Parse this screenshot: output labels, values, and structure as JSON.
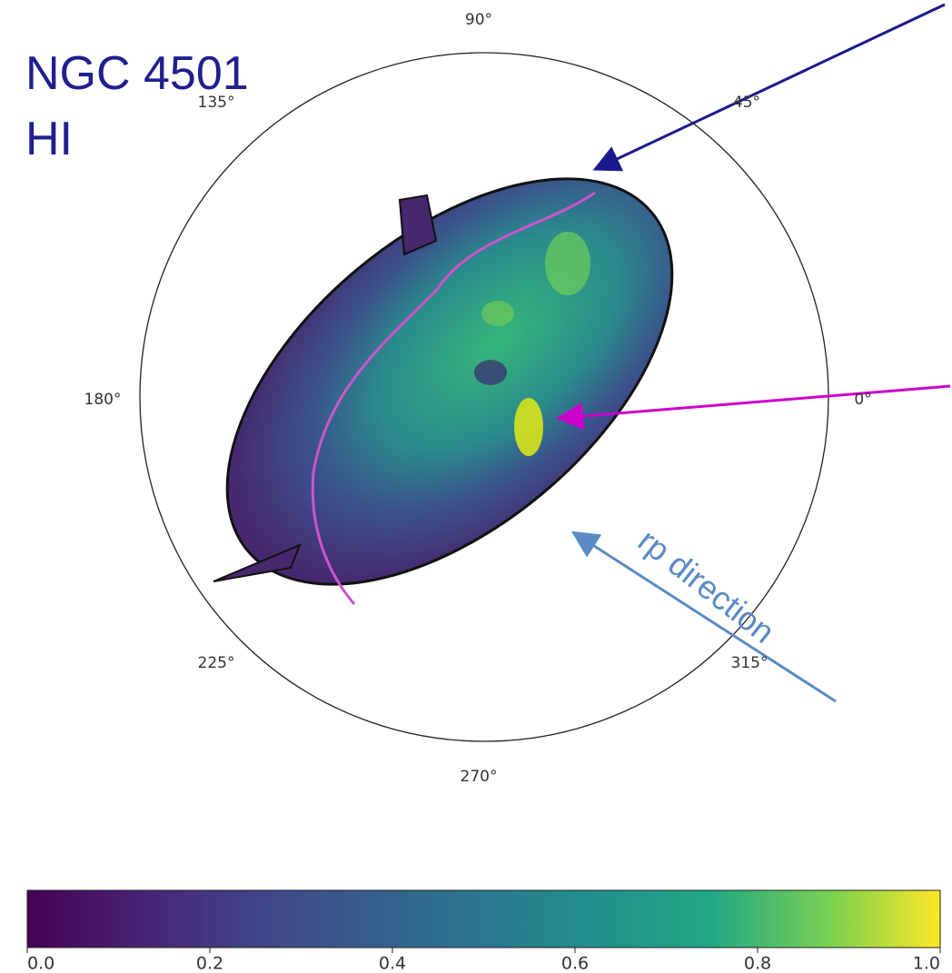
{
  "title": {
    "lines": [
      "NGC 4501",
      "HI"
    ]
  },
  "angle_labels": [
    "90°",
    "135°",
    "45°",
    "180°",
    "0°",
    "225°",
    "315°",
    "270°"
  ],
  "annotation": "rp direction",
  "colorbar": {
    "ticks": [
      "0.0",
      "0.2",
      "0.4",
      "0.6",
      "0.8",
      "1.0"
    ]
  }
}
